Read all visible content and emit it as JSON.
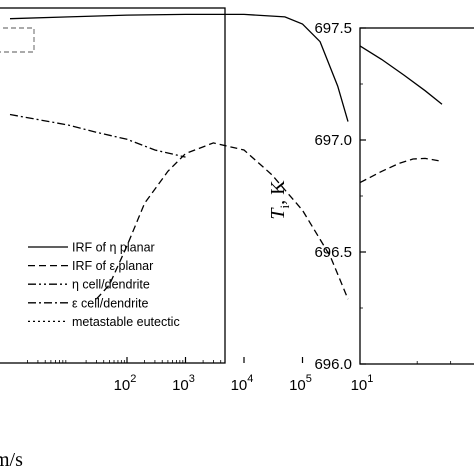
{
  "chart_data": [
    {
      "type": "line",
      "xscale": "log",
      "x_tick_labels": [
        {
          "base": "10",
          "exp": "2",
          "value": 100
        },
        {
          "base": "10",
          "exp": "3",
          "value": 1000
        },
        {
          "base": "10",
          "exp": "4",
          "value": 10000
        },
        {
          "base": "10",
          "exp": "5",
          "value": 100000
        }
      ],
      "xlabel_fragment": "m/s",
      "legend_placement": "bottom-right",
      "series": [
        {
          "name": "IRF of η planar",
          "style": "solid",
          "x": [
            1,
            10,
            100,
            1000,
            10000,
            50000,
            100000,
            200000,
            400000,
            600000
          ],
          "y": [
            0.97,
            0.975,
            0.98,
            0.982,
            0.982,
            0.975,
            0.955,
            0.905,
            0.78,
            0.68
          ]
        },
        {
          "name": "IRF of ε planar",
          "style": "dashed",
          "x": [
            30,
            50,
            100,
            200,
            500,
            1000,
            3000,
            10000,
            30000,
            100000,
            300000,
            600000
          ],
          "y": [
            0.18,
            0.22,
            0.33,
            0.45,
            0.54,
            0.59,
            0.62,
            0.6,
            0.53,
            0.43,
            0.3,
            0.18
          ]
        },
        {
          "name": "η cell/dendrite",
          "style": "dash-dot-dot",
          "x": [],
          "y": []
        },
        {
          "name": "ε cell/dendrite",
          "style": "dash-dot",
          "x": [
            1,
            10,
            30,
            100,
            300,
            1000
          ],
          "y": [
            0.7,
            0.67,
            0.65,
            0.63,
            0.6,
            0.58
          ]
        },
        {
          "name": "metastable eutectic",
          "style": "dotted",
          "x": [],
          "y": []
        }
      ]
    },
    {
      "type": "line",
      "xscale": "log",
      "xlim": [
        10,
        100
      ],
      "ylim": [
        696.0,
        697.5
      ],
      "y_ticks": [
        "696.0",
        "696.5",
        "697.0",
        "697.5"
      ],
      "x_tick_labels": [
        {
          "base": "10",
          "exp": "1",
          "value": 10
        }
      ],
      "ylabel_symbol": "T",
      "ylabel_subscript": "i",
      "ylabel_unit": ", K",
      "series": [
        {
          "name": "IRF of η planar",
          "style": "solid",
          "x": [
            10,
            13,
            17,
            22,
            27
          ],
          "y": [
            697.42,
            697.36,
            697.29,
            697.22,
            697.16
          ]
        },
        {
          "name": "IRF of ε planar",
          "style": "dashed",
          "x": [
            10,
            13,
            16,
            19,
            22,
            27
          ],
          "y": [
            696.81,
            696.86,
            696.895,
            696.915,
            696.918,
            696.905
          ]
        }
      ]
    }
  ]
}
